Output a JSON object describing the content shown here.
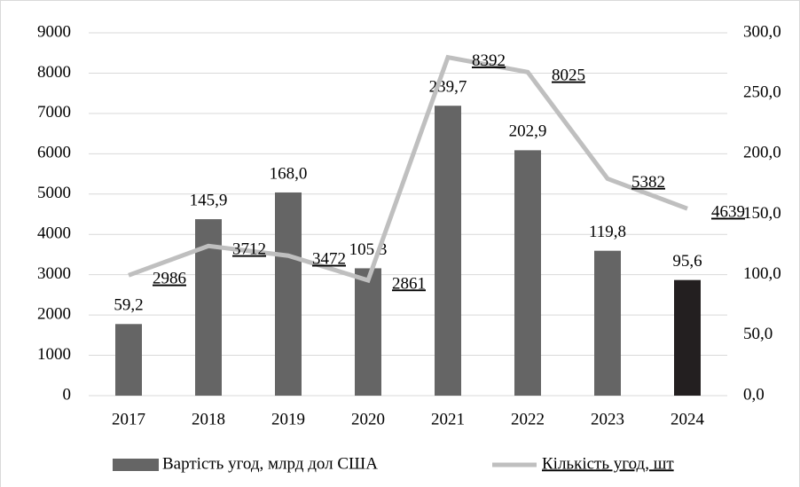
{
  "chart_data": {
    "type": "bar_line",
    "categories": [
      "2017",
      "2018",
      "2019",
      "2020",
      "2021",
      "2022",
      "2023",
      "2024"
    ],
    "series": [
      {
        "name": "Вартість угод, млрд дол США",
        "type": "bar",
        "axis": "y2",
        "color": "#656565",
        "colors": [
          "#656565",
          "#656565",
          "#656565",
          "#656565",
          "#656565",
          "#656565",
          "#656565",
          "#231f20"
        ],
        "values": [
          59.2,
          145.9,
          168.0,
          105.3,
          239.7,
          202.9,
          119.8,
          95.6
        ],
        "value_labels": [
          "59,2",
          "145,9",
          "168,0",
          "105,3",
          "239,7",
          "202,9",
          "119,8",
          "95,6"
        ]
      },
      {
        "name": "Кількість угод, шт",
        "type": "line",
        "axis": "y",
        "color": "#bfbfbf",
        "values": [
          2986,
          3712,
          3472,
          2861,
          8392,
          8025,
          5382,
          4639
        ]
      }
    ],
    "ylim": [
      0,
      9000
    ],
    "yticks": [
      0,
      1000,
      2000,
      3000,
      4000,
      5000,
      6000,
      7000,
      8000,
      9000
    ],
    "y2lim": [
      0,
      300
    ],
    "y2ticks": [
      {
        "value": 0,
        "label": "0,0"
      },
      {
        "value": 50,
        "label": "50,0"
      },
      {
        "value": 100,
        "label": "100,0"
      },
      {
        "value": 150,
        "label": "150,0"
      },
      {
        "value": 200,
        "label": "200,0"
      },
      {
        "value": 250,
        "label": "250,0"
      },
      {
        "value": 300,
        "label": "300,0"
      }
    ],
    "legend": "bottom"
  }
}
